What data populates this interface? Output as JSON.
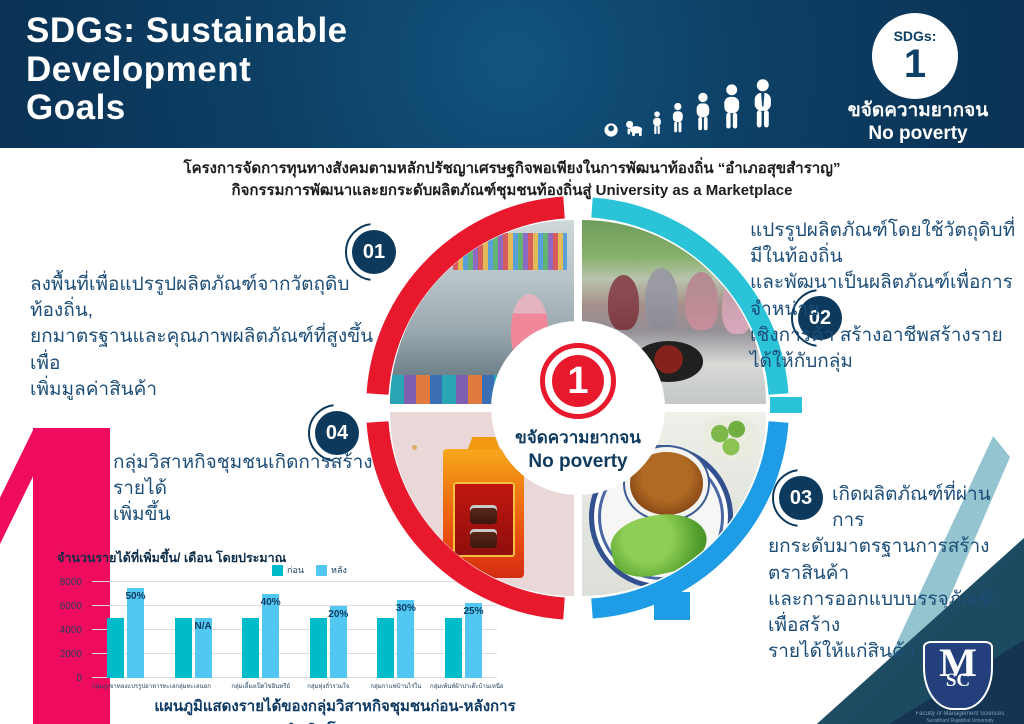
{
  "header": {
    "title_lines": [
      "SDGs: Sustainable",
      "Development",
      "Goals"
    ],
    "badge": {
      "label": "SDGs:",
      "number": "1"
    },
    "goal_th": "ขจัดความยากจน",
    "goal_en": "No poverty",
    "people_icons": [
      "swaddled-baby",
      "crawling-baby",
      "toddler",
      "child",
      "teen",
      "adult",
      "adult-with-tie"
    ]
  },
  "subtitle": {
    "line1": "โครงการจัดการทุนทางสังคมตามหลักปรัชญาเศรษฐกิจพอเพียงในการพัฒนาท้องถิ่น “อำเภอสุขสำราญ”",
    "line2": "กิจกรรมการพัฒนาและยกระดับผลิตภัณฑ์ชุมชนท้องถิ่นสู่ University as a Marketplace"
  },
  "big_numeral": "1",
  "center": {
    "number": "1",
    "goal_th": "ขจัดความยากจน",
    "goal_en": "No poverty"
  },
  "points": {
    "p1": {
      "number": "01",
      "lines": [
        "ลงพื้นที่เพื่อแปรรูปผลิตภัณฑ์จากวัตถุดิบท้องถิ่น,",
        "ยกมาตรฐานและคุณภาพผลิตภัณฑ์ที่สูงขึ้นเพื่อ",
        "เพิ่มมูลค่าสินค้า"
      ]
    },
    "p2": {
      "number": "02",
      "lines": [
        "แปรรูปผลิตภัณฑ์โดยใช้วัตถุดิบที่มีในท้องถิ่น",
        "และพัฒนาเป็นผลิตภัณฑ์เพื่อการจำหน่าย",
        "เชิงการค้า สร้างอาชีพสร้างรายได้ให้กับกลุ่ม"
      ]
    },
    "p3": {
      "number": "03",
      "lines": [
        "เกิดผลิตภัณฑ์ที่ผ่านการ",
        "ยกระดับมาตรฐานการสร้างตราสินค้า",
        "และการออกแบบบรรจุภัณฑ์ เพื่อสร้าง",
        "รายได้ให้แก่สินค้า"
      ]
    },
    "p4": {
      "number": "04",
      "lines": [
        "กลุ่มวิสาหกิจชุมชนเกิดการสร้างรายได้",
        "เพิ่มขึ้น"
      ]
    }
  },
  "photos": {
    "top_left": "community-craft-workshop-photo",
    "top_right": "women-cooking-chili-paste-photo",
    "bottom_left": "chili-paste-gift-box-photo",
    "bottom_right": "chili-paste-dish-with-vegetables-photo"
  },
  "chart_data": {
    "type": "bar",
    "title": "จำนวนรายได้ที่เพิ่มขึ้น/ เดือน โดยประมาณ",
    "caption": "แผนภูมิแสดงรายได้ของกลุ่มวิสาหกิจชุมชนก่อน-หลังการดำเนินโครงการ",
    "categories": [
      "กลุ่มภูเขาทองแปรรูปอาหารทะเล",
      "กลุ่มทะเลนอก",
      "กลุ่มเลี้ยงเป็ดไข่อินทรีย์",
      "กลุ่มทุ่งถั่วรวมใจ",
      "กลุ่มกาแฟบ้านไร่ใน",
      "กลุ่มเพ้นท์ผ้าปาเต๊ะบ้านเหนือ"
    ],
    "series": [
      {
        "name": "ก่อน",
        "values": [
          5000,
          5000,
          5000,
          5000,
          5000,
          5000
        ]
      },
      {
        "name": "หลัง",
        "values": [
          7500,
          5000,
          7000,
          6000,
          6500,
          6250
        ]
      }
    ],
    "bar_labels": [
      "50%",
      "N/A",
      "40%",
      "20%",
      "30%",
      "25%"
    ],
    "ylim": [
      0,
      8000
    ],
    "yticks": [
      0,
      2000,
      4000,
      6000,
      8000
    ],
    "grid": true,
    "legend_position": "top",
    "xlabel": "",
    "ylabel": "",
    "colors": {
      "ก่อน": "#00bccb",
      "หลัง": "#52c7f2"
    }
  },
  "logo": {
    "m": "M",
    "sc": "SC",
    "sub1": "Faculty of Management Sciences",
    "sub2": "Suratthani Rajabhat University"
  },
  "colors": {
    "header_navy": "#0d4066",
    "badge_navy": "#0d3a5c",
    "text_navy": "#1d4e78",
    "red": "#e8192d",
    "pink_numeral": "#ef0c5e",
    "cyan_arc": "#2bc3d8",
    "blue_arc": "#1e9ce6",
    "bar_before": "#00bccb",
    "bar_after": "#52c7f2"
  }
}
